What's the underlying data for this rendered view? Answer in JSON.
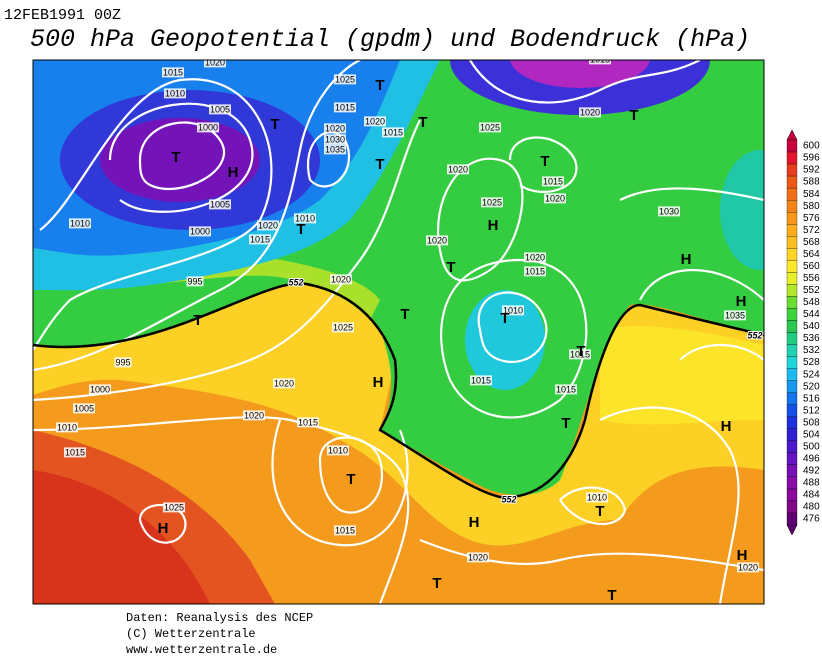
{
  "header": {
    "date": "12FEB1991 00Z",
    "title": "500 hPa Geopotential (gpdm) und Bodendruck (hPa)"
  },
  "map": {
    "isobar_labels": [
      1015,
      1010,
      1005,
      1000,
      1025,
      1015,
      1020,
      1015,
      1020,
      1030,
      1035,
      1025,
      1020,
      1020,
      1015,
      1020,
      1025,
      1005,
      1000,
      1020,
      1015,
      1010,
      1010,
      1020,
      1020,
      1015,
      995,
      1020,
      1030,
      1010,
      1025,
      1035,
      995,
      1015,
      1000,
      1005,
      1020,
      1015,
      1015,
      1010,
      1020,
      1015,
      1015,
      1010,
      1025,
      1015,
      1010,
      1020,
      1020,
      1015,
      1020
    ],
    "centers": [
      "T",
      "H",
      "T",
      "T",
      "T",
      "T",
      "T",
      "T",
      "T",
      "H",
      "T",
      "H",
      "H",
      "T",
      "T",
      "T",
      "H",
      "T",
      "T",
      "H",
      "T",
      "H",
      "H",
      "T",
      "T",
      "T",
      "H"
    ],
    "contour_labels": [
      552,
      552,
      552
    ]
  },
  "colorbar": {
    "ticks": [
      600,
      596,
      592,
      588,
      584,
      580,
      576,
      572,
      568,
      564,
      560,
      556,
      552,
      548,
      544,
      540,
      536,
      532,
      528,
      524,
      520,
      516,
      512,
      508,
      504,
      500,
      496,
      492,
      488,
      484,
      480,
      476
    ],
    "colors": [
      "#c8003c",
      "#e0142a",
      "#e83c1e",
      "#ec5a1a",
      "#f07018",
      "#f48418",
      "#f89818",
      "#fcac1c",
      "#fcc020",
      "#fcd424",
      "#fce828",
      "#e8f028",
      "#b4e62c",
      "#6cdc30",
      "#3cd23c",
      "#28c850",
      "#20cc80",
      "#20d0b0",
      "#20d4dc",
      "#1cbcf0",
      "#1898f0",
      "#1474ec",
      "#1450e4",
      "#1c30dc",
      "#3020d4",
      "#4c18cc",
      "#6414c0",
      "#7810b4",
      "#880ca8",
      "#8c0898",
      "#800888",
      "#600070"
    ]
  },
  "footer": {
    "lines": [
      "Daten: Reanalysis des NCEP",
      "(C) Wetterzentrale",
      "www.wetterzentrale.de"
    ]
  }
}
